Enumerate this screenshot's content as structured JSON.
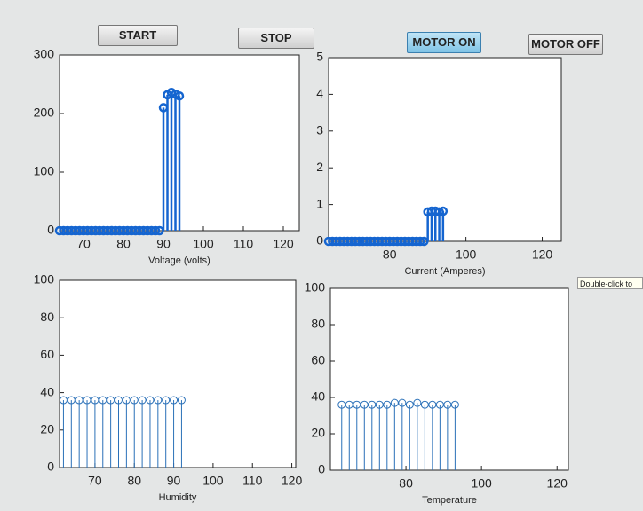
{
  "buttons": [
    {
      "label": "START"
    },
    {
      "label": "STOP"
    },
    {
      "label": "MOTOR ON"
    },
    {
      "label": "MOTOR OFF"
    }
  ],
  "tooltip": "Double-click to",
  "chart_data": [
    {
      "type": "stem",
      "x_label": "Voltage (volts)",
      "color": "#1565d0",
      "x": [
        64,
        65,
        66,
        67,
        68,
        69,
        70,
        71,
        72,
        73,
        74,
        75,
        76,
        77,
        78,
        79,
        80,
        81,
        82,
        83,
        84,
        85,
        86,
        87,
        88,
        89,
        90,
        91,
        92,
        93,
        94
      ],
      "values": [
        0,
        0,
        0,
        0,
        0,
        0,
        0,
        0,
        0,
        0,
        0,
        0,
        0,
        0,
        0,
        0,
        0,
        0,
        0,
        0,
        0,
        0,
        0,
        0,
        0,
        0,
        210,
        232,
        236,
        233,
        230
      ],
      "xlim": [
        64,
        124
      ],
      "xticks": [
        70,
        80,
        90,
        100,
        110,
        120
      ],
      "ylim": [
        0,
        300
      ],
      "yticks": [
        0,
        100,
        200,
        300
      ]
    },
    {
      "type": "stem",
      "x_label": "Current (Amperes)",
      "color": "#1565d0",
      "x": [
        64,
        65,
        66,
        67,
        68,
        69,
        70,
        71,
        72,
        73,
        74,
        75,
        76,
        77,
        78,
        79,
        80,
        81,
        82,
        83,
        84,
        85,
        86,
        87,
        88,
        89,
        90,
        91,
        92,
        93,
        94
      ],
      "values": [
        0,
        0,
        0,
        0,
        0,
        0,
        0,
        0,
        0,
        0,
        0,
        0,
        0,
        0,
        0,
        0,
        0,
        0,
        0,
        0,
        0,
        0,
        0,
        0,
        0,
        0,
        0.8,
        0.82,
        0.82,
        0.8,
        0.82
      ],
      "xlim": [
        64,
        125
      ],
      "xticks": [
        80,
        100,
        120
      ],
      "ylim": [
        0,
        5
      ],
      "yticks": [
        0,
        1,
        2,
        3,
        4,
        5
      ]
    },
    {
      "type": "stem",
      "x_label": "Humidity",
      "color": "#2a70b8",
      "x": [
        62,
        64,
        66,
        68,
        70,
        72,
        74,
        76,
        78,
        80,
        82,
        84,
        86,
        88,
        90,
        92
      ],
      "values": [
        36,
        36,
        36,
        36,
        36,
        36,
        36,
        36,
        36,
        36,
        36,
        36,
        36,
        36,
        36,
        36
      ],
      "xlim": [
        61,
        121
      ],
      "xticks": [
        70,
        80,
        90,
        100,
        110,
        120
      ],
      "ylim": [
        0,
        100
      ],
      "yticks": [
        0,
        20,
        40,
        60,
        80,
        100
      ]
    },
    {
      "type": "stem",
      "x_label": "Temperature",
      "color": "#2a70b8",
      "x": [
        63,
        65,
        67,
        69,
        71,
        73,
        75,
        77,
        79,
        81,
        83,
        85,
        87,
        89,
        91,
        93
      ],
      "values": [
        36,
        36,
        36,
        36,
        36,
        36,
        36,
        37,
        37,
        36,
        37,
        36,
        36,
        36,
        36,
        36
      ],
      "xlim": [
        60,
        123
      ],
      "xticks": [
        80,
        100,
        120
      ],
      "ylim": [
        0,
        100
      ],
      "yticks": [
        0,
        20,
        40,
        60,
        80,
        100
      ]
    }
  ]
}
